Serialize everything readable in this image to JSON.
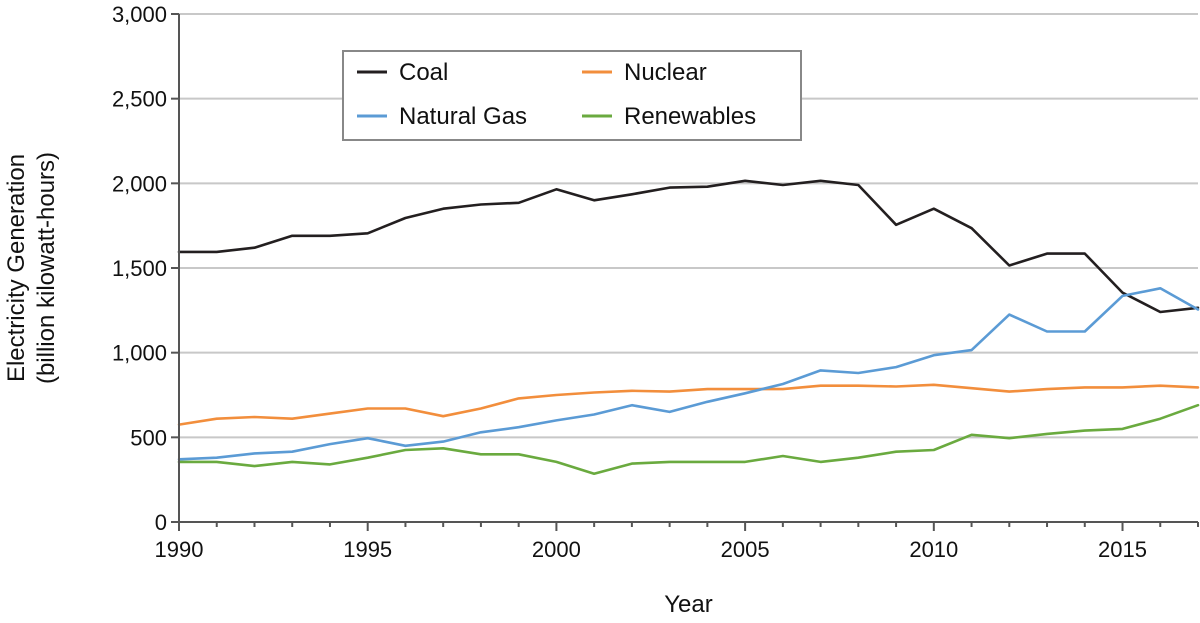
{
  "chart_data": {
    "type": "line",
    "title": "",
    "xlabel": "Year",
    "ylabel_lines": [
      "Electricity Generation",
      "(billion kilowatt-hours)"
    ],
    "xlim": [
      1990,
      2017
    ],
    "ylim": [
      0,
      3000
    ],
    "x_ticks": [
      1990,
      1995,
      2000,
      2005,
      2010,
      2015
    ],
    "x_tick_labels": [
      "1990",
      "1995",
      "2000",
      "2005",
      "2010",
      "2015"
    ],
    "y_ticks": [
      0,
      500,
      1000,
      1500,
      2000,
      2500,
      3000
    ],
    "y_tick_labels": [
      "0",
      "500",
      "1,000",
      "1,500",
      "2,000",
      "2,500",
      "3,000"
    ],
    "grid": "horizontal",
    "legend_position": "top-left-inside",
    "x": [
      1990,
      1991,
      1992,
      1993,
      1994,
      1995,
      1996,
      1997,
      1998,
      1999,
      2000,
      2001,
      2002,
      2003,
      2004,
      2005,
      2006,
      2007,
      2008,
      2009,
      2010,
      2011,
      2012,
      2013,
      2014,
      2015,
      2016,
      2017
    ],
    "series": [
      {
        "name": "Coal",
        "color": "#231f20",
        "values": [
          1595,
          1595,
          1620,
          1690,
          1690,
          1705,
          1795,
          1850,
          1875,
          1885,
          1965,
          1900,
          1935,
          1975,
          1980,
          2015,
          1990,
          2015,
          1990,
          1755,
          1850,
          1735,
          1515,
          1585,
          1585,
          1355,
          1240,
          1265
        ]
      },
      {
        "name": "Nuclear",
        "color": "#f28e3c",
        "values": [
          575,
          610,
          620,
          610,
          640,
          670,
          670,
          625,
          670,
          730,
          750,
          765,
          775,
          770,
          785,
          785,
          785,
          805,
          805,
          800,
          810,
          790,
          770,
          785,
          795,
          795,
          805,
          795
        ]
      },
      {
        "name": "Natural Gas",
        "color": "#5b9bd5",
        "values": [
          370,
          380,
          405,
          415,
          460,
          495,
          450,
          475,
          530,
          560,
          600,
          635,
          690,
          650,
          710,
          760,
          815,
          895,
          880,
          915,
          985,
          1015,
          1225,
          1125,
          1125,
          1335,
          1380,
          1255
        ]
      },
      {
        "name": "Renewables",
        "color": "#6aaa3f",
        "values": [
          355,
          355,
          330,
          355,
          340,
          380,
          425,
          435,
          400,
          400,
          355,
          285,
          345,
          355,
          355,
          355,
          390,
          355,
          380,
          415,
          425,
          515,
          495,
          520,
          540,
          550,
          610,
          690
        ]
      }
    ]
  }
}
